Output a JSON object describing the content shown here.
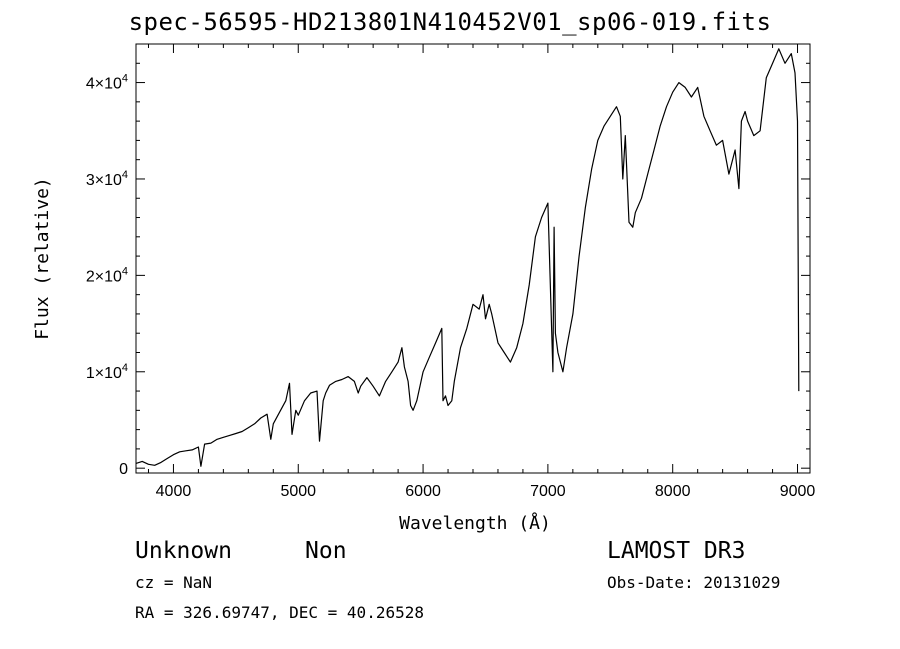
{
  "title": "spec-56595-HD213801N410452V01_sp06-019.fits",
  "info": {
    "object_class": "Unknown",
    "subclass": "Non",
    "survey": "LAMOST DR3",
    "cz": "cz = NaN",
    "obs_date": "Obs-Date: 20131029",
    "coords": "RA = 326.69747, DEC =  40.26528"
  },
  "chart_data": {
    "type": "line",
    "title": "spec-56595-HD213801N410452V01_sp06-019.fits",
    "xlabel": "Wavelength (Å)",
    "ylabel": "Flux (relative)",
    "xlim": [
      3700,
      9100
    ],
    "ylim": [
      -500,
      44000
    ],
    "x_ticks": [
      4000,
      5000,
      6000,
      7000,
      8000,
      9000
    ],
    "y_ticks": [
      {
        "value": 0,
        "mantissa": "0",
        "exponent": ""
      },
      {
        "value": 10000,
        "mantissa": "1×10",
        "exponent": "4"
      },
      {
        "value": 20000,
        "mantissa": "2×10",
        "exponent": "4"
      },
      {
        "value": 30000,
        "mantissa": "3×10",
        "exponent": "4"
      },
      {
        "value": 40000,
        "mantissa": "4×10",
        "exponent": "4"
      }
    ],
    "series": [
      {
        "name": "flux",
        "color": "#000000",
        "x": [
          3700,
          3750,
          3800,
          3850,
          3900,
          3950,
          4000,
          4050,
          4100,
          4150,
          4200,
          4220,
          4250,
          4300,
          4350,
          4400,
          4450,
          4500,
          4550,
          4600,
          4650,
          4700,
          4750,
          4780,
          4800,
          4850,
          4900,
          4930,
          4950,
          4980,
          5000,
          5050,
          5100,
          5150,
          5170,
          5200,
          5220,
          5250,
          5300,
          5350,
          5400,
          5450,
          5480,
          5500,
          5550,
          5600,
          5650,
          5700,
          5750,
          5800,
          5830,
          5850,
          5880,
          5900,
          5920,
          5950,
          6000,
          6050,
          6100,
          6150,
          6160,
          6180,
          6200,
          6230,
          6250,
          6300,
          6350,
          6400,
          6450,
          6480,
          6500,
          6530,
          6550,
          6600,
          6650,
          6700,
          6750,
          6800,
          6850,
          6900,
          6950,
          7000,
          7040,
          7050,
          7060,
          7080,
          7100,
          7120,
          7150,
          7200,
          7250,
          7300,
          7350,
          7400,
          7450,
          7500,
          7550,
          7580,
          7600,
          7620,
          7650,
          7680,
          7700,
          7750,
          7800,
          7850,
          7900,
          7950,
          8000,
          8050,
          8100,
          8150,
          8200,
          8250,
          8300,
          8350,
          8400,
          8450,
          8500,
          8530,
          8550,
          8580,
          8600,
          8650,
          8700,
          8750,
          8800,
          8850,
          8900,
          8950,
          8980,
          9000,
          9010
        ],
        "values": [
          500,
          700,
          400,
          300,
          600,
          1000,
          1400,
          1700,
          1800,
          1900,
          2200,
          200,
          2500,
          2600,
          3000,
          3200,
          3400,
          3600,
          3800,
          4200,
          4600,
          5200,
          5600,
          3000,
          4600,
          5800,
          7000,
          8800,
          3500,
          6000,
          5500,
          7000,
          7800,
          8000,
          2800,
          7000,
          7800,
          8600,
          9000,
          9200,
          9500,
          9000,
          7800,
          8500,
          9400,
          8500,
          7500,
          9000,
          10000,
          11000,
          12500,
          10500,
          9000,
          6500,
          6000,
          7000,
          10000,
          11500,
          13000,
          14500,
          7000,
          7500,
          6500,
          7000,
          9000,
          12500,
          14500,
          17000,
          16500,
          18000,
          15500,
          17000,
          16000,
          13000,
          12000,
          11000,
          12500,
          15000,
          19000,
          24000,
          26000,
          27500,
          10000,
          25000,
          14000,
          12000,
          11000,
          10000,
          12500,
          16000,
          22000,
          27000,
          31000,
          34000,
          35500,
          36500,
          37500,
          36500,
          30000,
          34500,
          25500,
          25000,
          26500,
          28000,
          30500,
          33000,
          35500,
          37500,
          39000,
          40000,
          39500,
          38500,
          39500,
          36500,
          35000,
          33500,
          34000,
          30500,
          33000,
          29000,
          36000,
          37000,
          36000,
          34500,
          35000,
          40500,
          42000,
          43500,
          42000,
          43000,
          41000,
          36000,
          8000
        ]
      }
    ]
  }
}
